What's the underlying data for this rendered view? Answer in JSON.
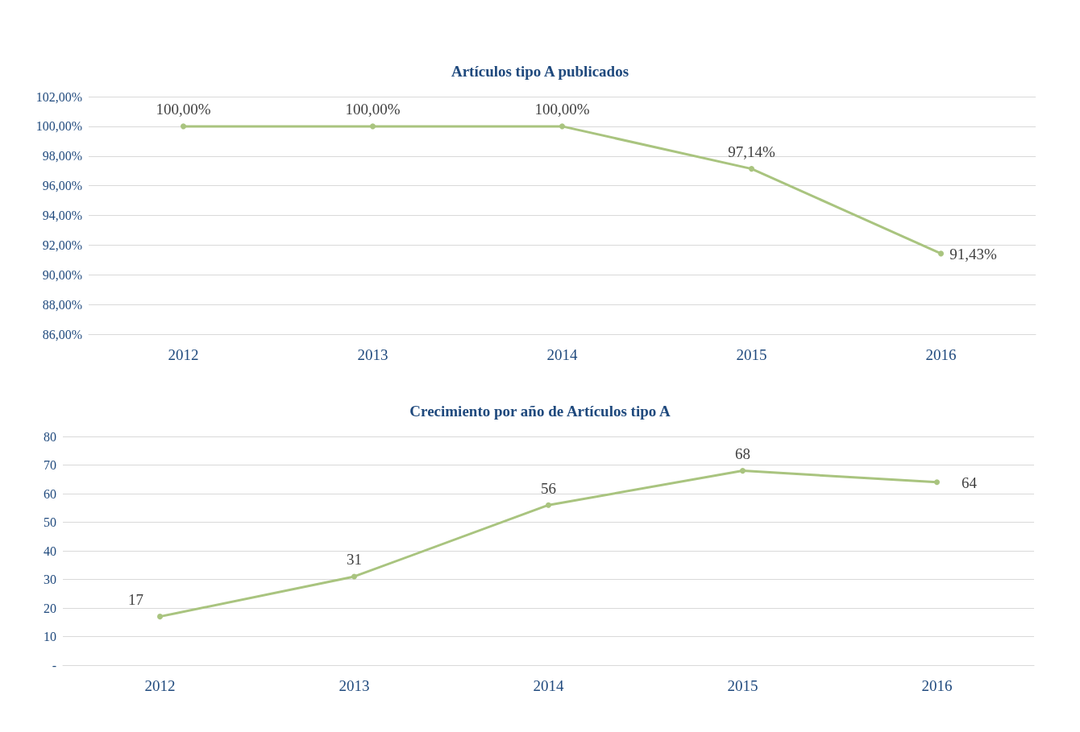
{
  "chart_data": [
    {
      "type": "line",
      "title": "Artículos tipo A publicados",
      "categories": [
        "2012",
        "2013",
        "2014",
        "2015",
        "2016"
      ],
      "series": [
        {
          "color": "#a9c47f",
          "values": [
            100,
            100,
            100,
            97.14,
            91.43
          ],
          "value_labels": [
            "100,00%",
            "100,00%",
            "100,00%",
            "97,14%",
            "91,43%"
          ]
        }
      ],
      "ylim": [
        86,
        102
      ],
      "yticks": [
        {
          "value": 86,
          "label": "86,00%"
        },
        {
          "value": 88,
          "label": "88,00%"
        },
        {
          "value": 90,
          "label": "90,00%"
        },
        {
          "value": 92,
          "label": "92,00%"
        },
        {
          "value": 94,
          "label": "94,00%"
        },
        {
          "value": 96,
          "label": "96,00%"
        },
        {
          "value": 98,
          "label": "98,00%"
        },
        {
          "value": 100,
          "label": "100,00%"
        },
        {
          "value": 102,
          "label": "102,00%"
        }
      ],
      "grid": "y",
      "marker": "circle",
      "line_style": "solid"
    },
    {
      "type": "line",
      "title": "Crecimiento por año de Artículos tipo A",
      "categories": [
        "2012",
        "2013",
        "2014",
        "2015",
        "2016"
      ],
      "series": [
        {
          "color": "#a9c47f",
          "values": [
            17,
            31,
            56,
            68,
            64
          ]
        }
      ],
      "data_labels": true,
      "ylim": [
        0,
        80
      ],
      "yticks": [
        {
          "value": 0,
          "label": "-"
        },
        10,
        20,
        30,
        40,
        50,
        60,
        70,
        80
      ],
      "grid": "y",
      "marker": "circle",
      "line_style": "solid"
    }
  ]
}
